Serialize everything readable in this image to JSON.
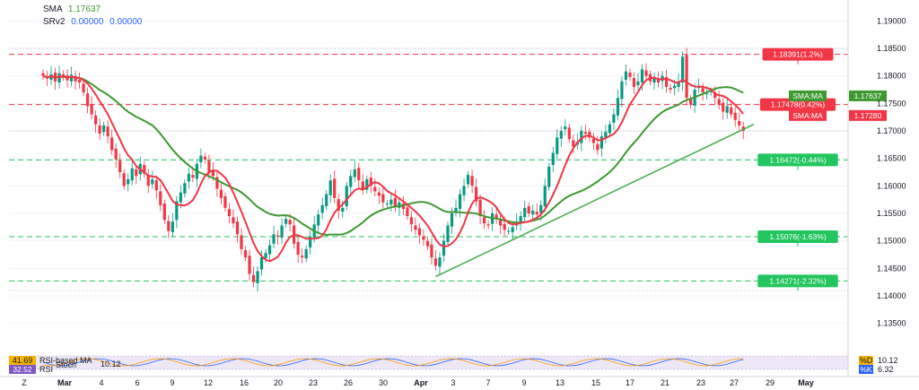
{
  "legend": {
    "sma_label": "SMA",
    "sma_value": "1.17637",
    "srv2_label": "SRv2",
    "srv2_v1": "0.00000",
    "srv2_v2": "0.00000"
  },
  "colors": {
    "up": "#089981",
    "down": "#f23645",
    "sma_fast": "#f23645",
    "sma_slow": "#3d9a2f",
    "trendline": "#4caf50",
    "resistance": "#f23645",
    "support": "#22c55e"
  },
  "chart_data": {
    "type": "candlestick",
    "instrument": "EUR/USD",
    "y_ticks": [
      "1.19000",
      "1.18500",
      "1.18000",
      "1.17500",
      "1.17000",
      "1.16500",
      "1.16000",
      "1.15500",
      "1.15000",
      "1.14500",
      "1.14000",
      "1.13500"
    ],
    "ylim": [
      1.1325,
      1.1925
    ],
    "x_axis_labels": [
      "Z",
      "Mar",
      "4",
      "6",
      "9",
      "12",
      "16",
      "20",
      "23",
      "26",
      "30",
      "Apr",
      "3",
      "7",
      "9",
      "13",
      "15",
      "17",
      "21",
      "23",
      "27",
      "29",
      "May"
    ],
    "levels": [
      {
        "price": 1.18391,
        "label": "1.18391(1.2%)",
        "kind": "resistance"
      },
      {
        "price": 1.17478,
        "label": "1.17478(0.42%)",
        "kind": "resistance"
      },
      {
        "price": 1.16472,
        "label": "1.16472(-0.44%)",
        "kind": "support"
      },
      {
        "price": 1.15076,
        "label": "1.15076(-1.63%)",
        "kind": "support"
      },
      {
        "price": 1.14271,
        "label": "1.14271(-2.32%)",
        "kind": "support"
      }
    ],
    "extra_dotted_levels": [
      1.185,
      1.17,
      1.141
    ],
    "price_tags": [
      {
        "price": 1.17637,
        "label": "SMA:MA",
        "value": "1.17637",
        "series": "slow"
      },
      {
        "price": 1.1728,
        "label": "SMA:MA",
        "value": "1.17280",
        "series": "fast"
      }
    ],
    "closes": [
      1.18,
      1.1795,
      1.1803,
      1.179,
      1.1805,
      1.1798,
      1.1792,
      1.1802,
      1.179,
      1.1788,
      1.177,
      1.1745,
      1.173,
      1.1712,
      1.1695,
      1.171,
      1.169,
      1.1665,
      1.1648,
      1.1625,
      1.16,
      1.1612,
      1.1632,
      1.1618,
      1.164,
      1.1622,
      1.16,
      1.1612,
      1.1592,
      1.1565,
      1.1538,
      1.1518,
      1.1535,
      1.1572,
      1.1588,
      1.1605,
      1.1622,
      1.1615,
      1.164,
      1.1655,
      1.1648,
      1.1625,
      1.1618,
      1.1595,
      1.1578,
      1.156,
      1.1545,
      1.1532,
      1.1512,
      1.1485,
      1.147,
      1.144,
      1.1425,
      1.1445,
      1.147,
      1.1478,
      1.1492,
      1.1512,
      1.1508,
      1.1528,
      1.154,
      1.153,
      1.1495,
      1.1475,
      1.147,
      1.1485,
      1.1508,
      1.153,
      1.1548,
      1.1565,
      1.1585,
      1.161,
      1.1578,
      1.1555,
      1.156,
      1.16,
      1.1618,
      1.163,
      1.161,
      1.1595,
      1.1612,
      1.16,
      1.159,
      1.1582,
      1.157,
      1.1568,
      1.1575,
      1.1562,
      1.157,
      1.1558,
      1.1545,
      1.153,
      1.152,
      1.151,
      1.1502,
      1.149,
      1.147,
      1.1455,
      1.147,
      1.15,
      1.1528,
      1.155,
      1.156,
      1.1585,
      1.16,
      1.162,
      1.16,
      1.1572,
      1.1545,
      1.1532,
      1.1528,
      1.155,
      1.154,
      1.1528,
      1.152,
      1.1518,
      1.1525,
      1.1535,
      1.1545,
      1.156,
      1.155,
      1.1555,
      1.1548,
      1.1565,
      1.16,
      1.1635,
      1.166,
      1.1688,
      1.17,
      1.1708,
      1.1685,
      1.1672,
      1.168,
      1.17,
      1.1695,
      1.1688,
      1.1678,
      1.1665,
      1.169,
      1.1698,
      1.1712,
      1.173,
      1.176,
      1.179,
      1.1808,
      1.1798,
      1.178,
      1.179,
      1.1812,
      1.18,
      1.179,
      1.1795,
      1.1788,
      1.18,
      1.178,
      1.1775,
      1.1782,
      1.179,
      1.1835,
      1.176,
      1.1748,
      1.1775,
      1.178,
      1.177,
      1.1768,
      1.1772,
      1.176,
      1.1748,
      1.1735,
      1.1745,
      1.173,
      1.172,
      1.171,
      1.17
    ],
    "series": [
      {
        "name": "SMA",
        "value": 1.17637
      },
      {
        "name": "SRv2",
        "value": 0.0
      }
    ]
  },
  "oscillator": {
    "label_a_value": "41.69",
    "label_a_name": "RSI-based MA",
    "label_b_value": "32.52",
    "label_b_name": "RSI",
    "stoch_overlay": "Stoch",
    "stoch_overlay_value": "10.12",
    "right_d_label": "%D",
    "right_d_value": "10.12",
    "right_k_label": "%K",
    "right_k_value": "6.32"
  }
}
